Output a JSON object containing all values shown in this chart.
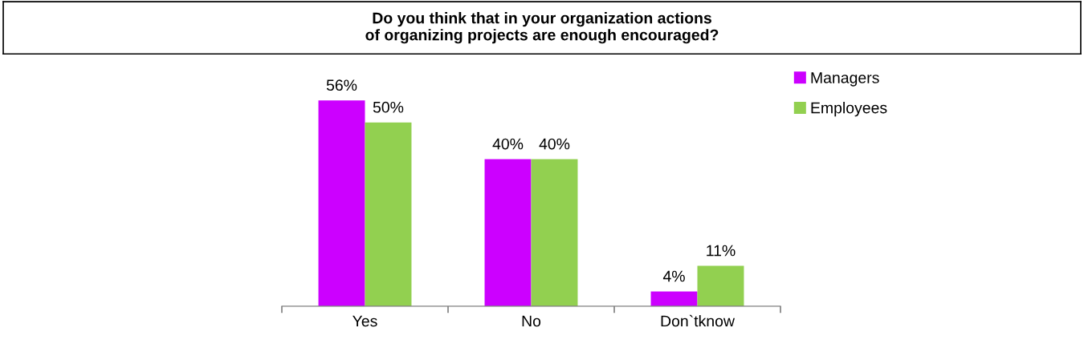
{
  "chart_data": {
    "type": "bar",
    "title": "Do you think that in your organization actions\nof organizing projects are enough encouraged?",
    "categories": [
      "Yes",
      "No",
      "Don`tknow"
    ],
    "series": [
      {
        "name": "Managers",
        "color": "#cc00ff",
        "values": [
          56,
          40,
          4
        ],
        "value_labels": [
          "56%",
          "40%",
          "4%"
        ]
      },
      {
        "name": "Employees",
        "color": "#92d050",
        "values": [
          50,
          40,
          11
        ],
        "value_labels": [
          "50%",
          "40%",
          "11%"
        ]
      }
    ],
    "tick_labels": "x",
    "legend": "top right",
    "grid": false
  }
}
